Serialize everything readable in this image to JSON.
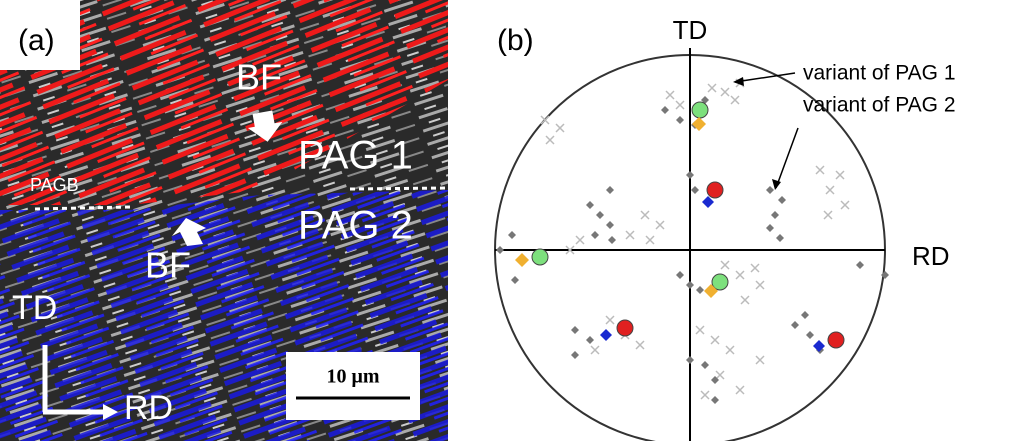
{
  "panel_a": {
    "label": "(a)",
    "bf_top": "BF",
    "pag1": "PAG 1",
    "pagb": "PAGB",
    "pag2": "PAG 2",
    "bf_bottom": "BF",
    "td": "TD",
    "rd": "RD",
    "scale": "10 μm"
  },
  "panel_b": {
    "label": "(b)",
    "td": "TD",
    "rd": "RD",
    "variant1": "variant of PAG 1",
    "variant2": "variant of PAG 2"
  }
}
